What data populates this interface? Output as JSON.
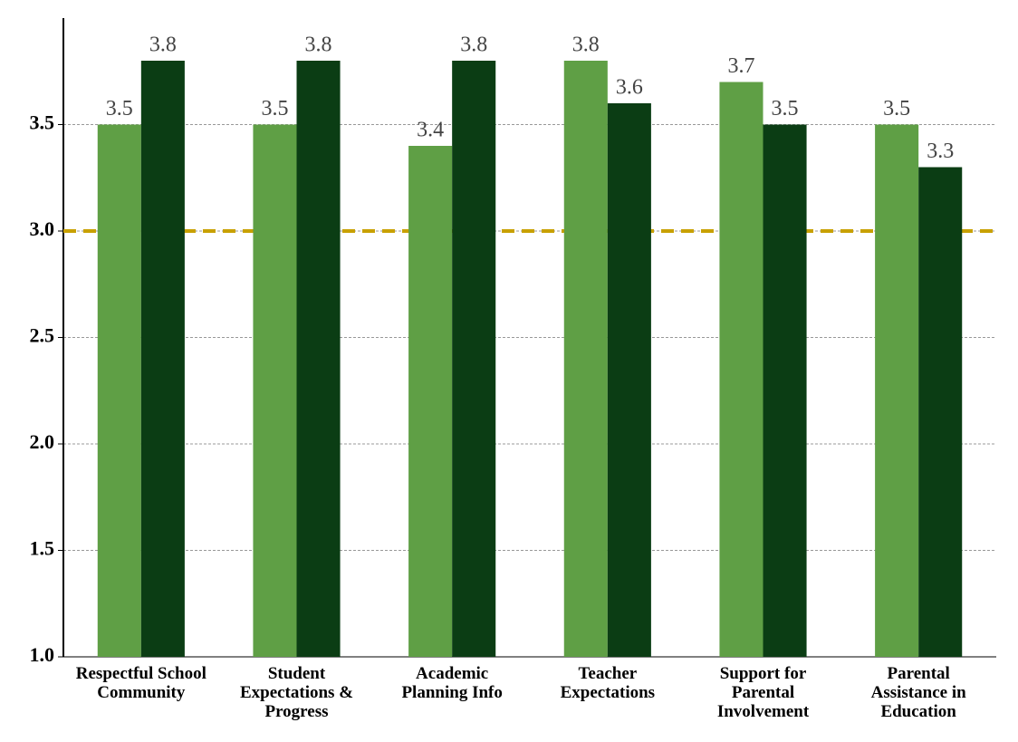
{
  "chart_data": {
    "type": "bar",
    "categories": [
      "Respectful School Community",
      "Student Expectations & Progress",
      "Academic Planning Info",
      "Teacher Expectations",
      "Support for Parental Involvement",
      "Parental Assistance in Education"
    ],
    "series": [
      {
        "color": "#5f9f45",
        "values": [
          3.5,
          3.5,
          3.4,
          3.8,
          3.7,
          3.5
        ]
      },
      {
        "color": "#0b3d14",
        "values": [
          3.8,
          3.8,
          3.8,
          3.6,
          3.5,
          3.3
        ]
      }
    ],
    "ylim": [
      1,
      4
    ],
    "yticks": [
      {
        "value": 1,
        "label": "1.0"
      },
      1.5,
      {
        "value": 2,
        "label": "2.0"
      },
      2.5,
      {
        "value": 3,
        "label": "3.0"
      },
      3.5
    ],
    "reference_line": 3,
    "grid": true
  }
}
